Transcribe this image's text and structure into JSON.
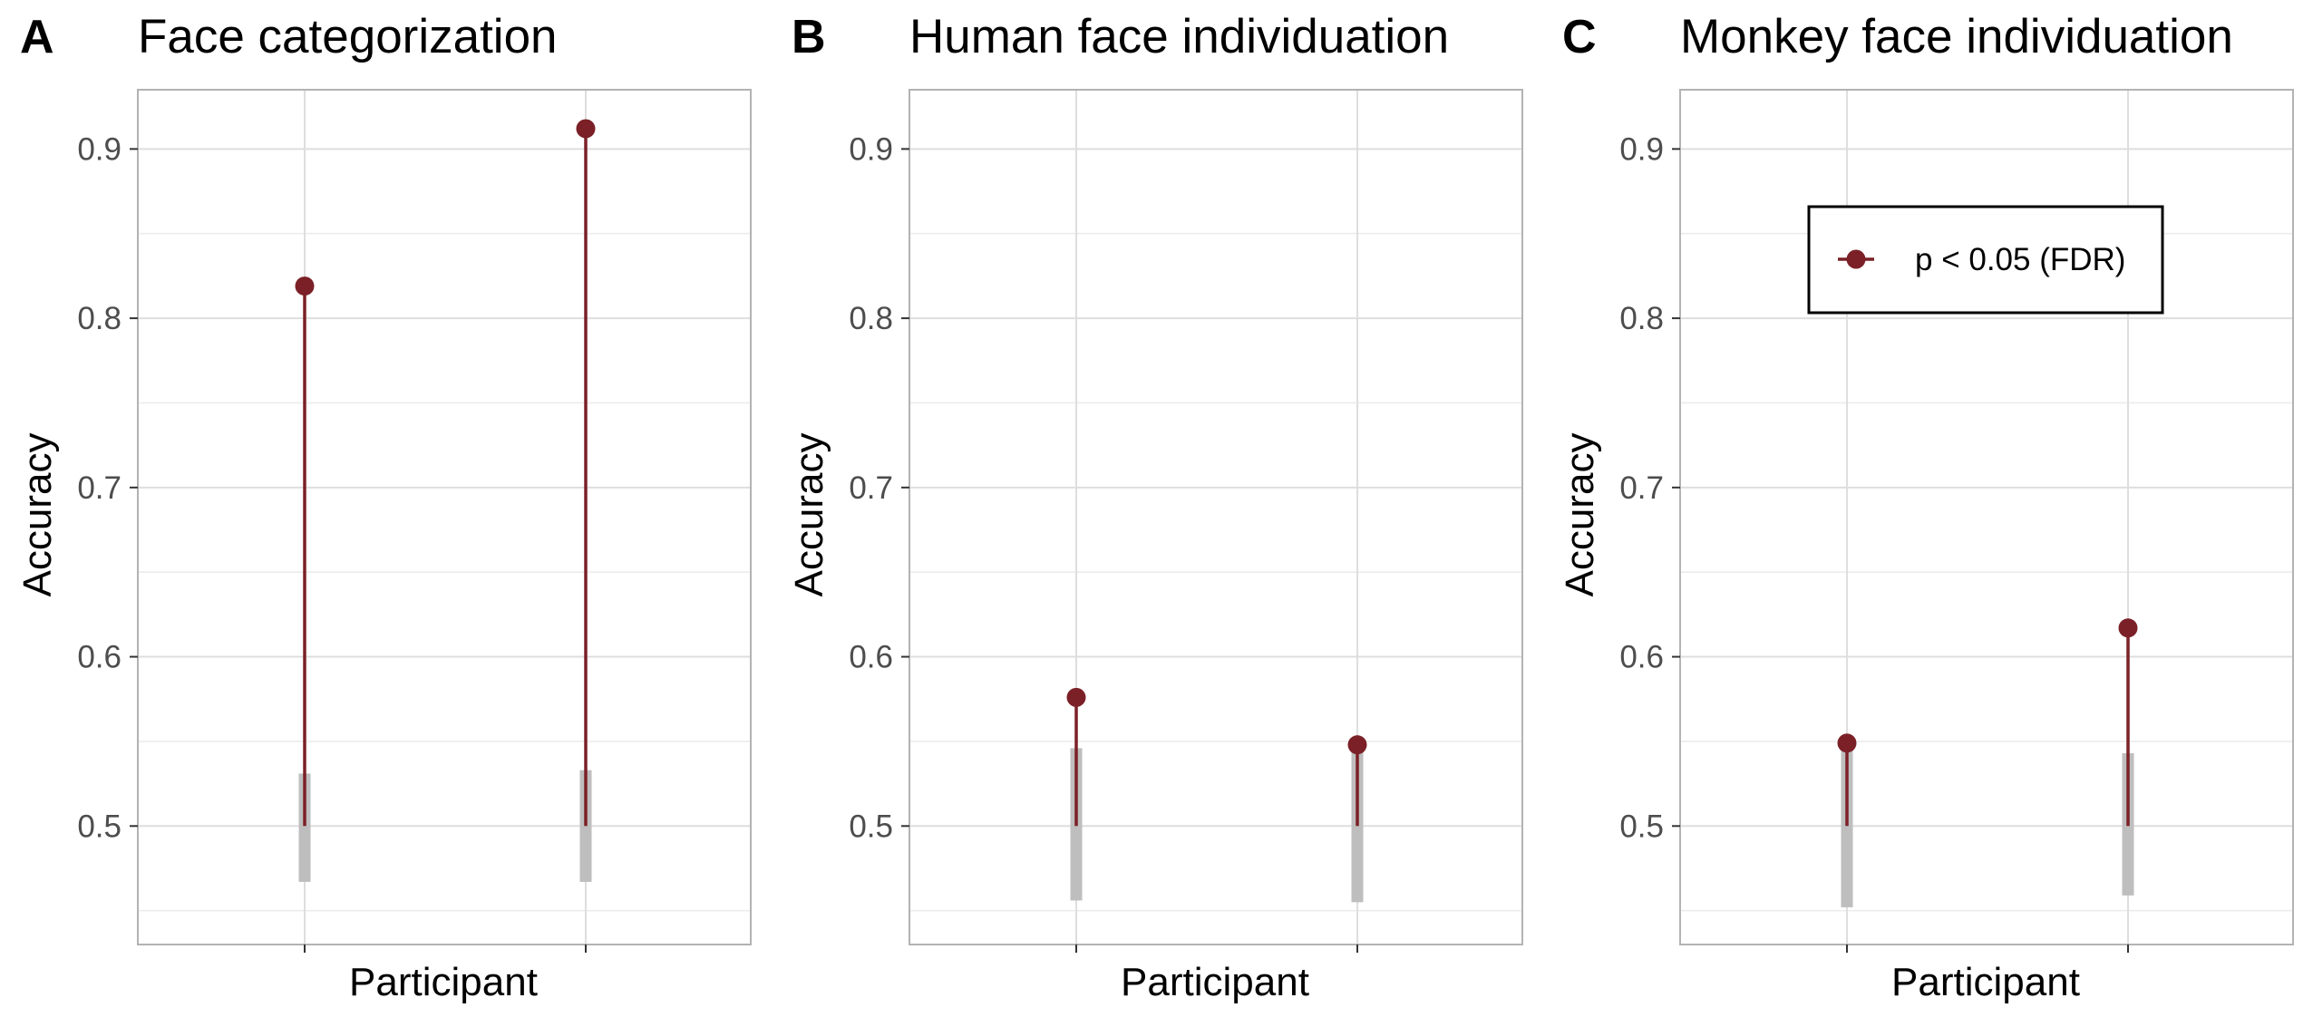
{
  "colors": {
    "significant": "#7b2027",
    "null_distribution": "#bebebe",
    "grid_major": "#dedede",
    "grid_minor": "#ececec",
    "panel_border": "#b3b3b3"
  },
  "legend": {
    "label": "p < 0.05 (FDR)"
  },
  "chart_data": [
    {
      "type": "lollipop",
      "letter": "A",
      "title": "Face categorization",
      "xlabel": "Participant",
      "ylabel": "Accuracy",
      "ylim": [
        0.43,
        0.935
      ],
      "yticks": [
        "0.5",
        "0.6",
        "0.7",
        "0.8",
        "0.9"
      ],
      "baseline": 0.5,
      "grid": true,
      "points": [
        {
          "accuracy": 0.819,
          "null_low": 0.467,
          "null_high": 0.531,
          "significant": true
        },
        {
          "accuracy": 0.912,
          "null_low": 0.467,
          "null_high": 0.533,
          "significant": true
        }
      ]
    },
    {
      "type": "lollipop",
      "letter": "B",
      "title": "Human face individuation",
      "xlabel": "Participant",
      "ylabel": "Accuracy",
      "ylim": [
        0.43,
        0.935
      ],
      "yticks": [
        "0.5",
        "0.6",
        "0.7",
        "0.8",
        "0.9"
      ],
      "baseline": 0.5,
      "grid": true,
      "points": [
        {
          "accuracy": 0.576,
          "null_low": 0.456,
          "null_high": 0.546,
          "significant": true
        },
        {
          "accuracy": 0.548,
          "null_low": 0.455,
          "null_high": 0.546,
          "significant": true
        }
      ]
    },
    {
      "type": "lollipop",
      "letter": "C",
      "title": "Monkey face individuation",
      "xlabel": "Participant",
      "ylabel": "Accuracy",
      "ylim": [
        0.43,
        0.935
      ],
      "yticks": [
        "0.5",
        "0.6",
        "0.7",
        "0.8",
        "0.9"
      ],
      "baseline": 0.5,
      "grid": true,
      "legend_position": "top-right",
      "points": [
        {
          "accuracy": 0.549,
          "null_low": 0.452,
          "null_high": 0.546,
          "significant": true
        },
        {
          "accuracy": 0.617,
          "null_low": 0.459,
          "null_high": 0.543,
          "significant": true
        }
      ]
    }
  ]
}
